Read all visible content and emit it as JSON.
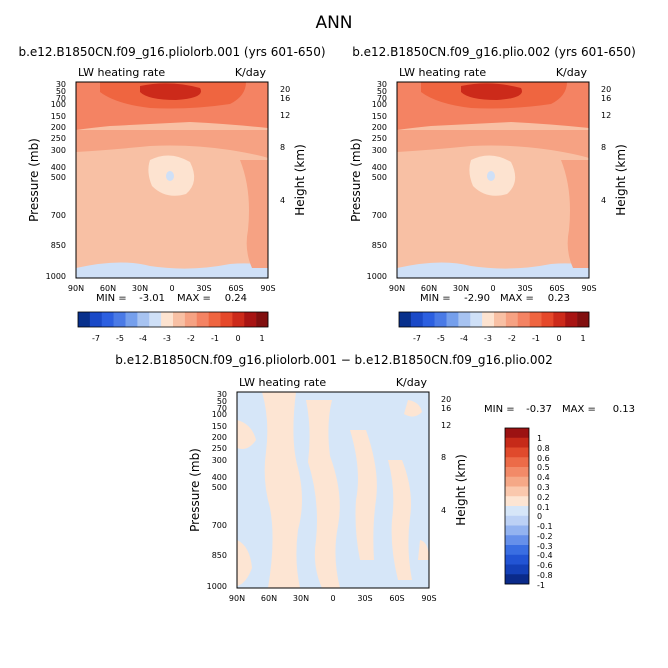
{
  "figure": {
    "title": "ANN",
    "diff_title": "b.e12.B1850CN.f09_g16.pliolorb.001 − b.e12.B1850CN.f09_g16.plio.002"
  },
  "chart_data": [
    {
      "type": "heatmap",
      "title": "b.e12.B1850CN.f09_g16.pliolorb.001 (yrs 601-650)",
      "variable_label": "LW heating rate",
      "units": "K/day",
      "ylabel": "Pressure (mb)",
      "y2label": "Height (km)",
      "x_ticks": [
        "90N",
        "60N",
        "30N",
        "0",
        "30S",
        "60S",
        "90S"
      ],
      "y_ticks": [
        "30",
        "50",
        "70",
        "100",
        "150",
        "200",
        "250",
        "300",
        "400",
        "500",
        "700",
        "850",
        "1000"
      ],
      "y2_ticks": [
        "20",
        "16",
        "12",
        "8",
        "4"
      ],
      "min_label": "MIN = ",
      "min": "-3.01",
      "max_label": "MAX = ",
      "max": "0.24",
      "colorbar": {
        "levels": [
          "-7",
          "-5",
          "-4",
          "-3",
          "-2",
          "-1",
          "0",
          "1"
        ]
      }
    },
    {
      "type": "heatmap",
      "title": "b.e12.B1850CN.f09_g16.plio.002 (yrs 601-650)",
      "variable_label": "LW heating rate",
      "units": "K/day",
      "ylabel": "Pressure (mb)",
      "y2label": "Height (km)",
      "x_ticks": [
        "90N",
        "60N",
        "30N",
        "0",
        "30S",
        "60S",
        "90S"
      ],
      "y_ticks": [
        "30",
        "50",
        "70",
        "100",
        "150",
        "200",
        "250",
        "300",
        "400",
        "500",
        "700",
        "850",
        "1000"
      ],
      "y2_ticks": [
        "20",
        "16",
        "12",
        "8",
        "4"
      ],
      "min_label": "MIN = ",
      "min": "-2.90",
      "max_label": "MAX = ",
      "max": "0.23",
      "colorbar": {
        "levels": [
          "-7",
          "-5",
          "-4",
          "-3",
          "-2",
          "-1",
          "0",
          "1"
        ]
      }
    },
    {
      "type": "heatmap",
      "title": "",
      "variable_label": "LW heating rate",
      "units": "K/day",
      "ylabel": "Pressure (mb)",
      "y2label": "Height (km)",
      "x_ticks": [
        "90N",
        "60N",
        "30N",
        "0",
        "30S",
        "60S",
        "90S"
      ],
      "y_ticks": [
        "30",
        "50",
        "70",
        "100",
        "150",
        "200",
        "250",
        "300",
        "400",
        "500",
        "700",
        "850",
        "1000"
      ],
      "y2_ticks": [
        "20",
        "16",
        "12",
        "8",
        "4"
      ],
      "min_label": "MIN = ",
      "min": "-0.37",
      "max_label": "MAX = ",
      "max": "0.13",
      "colorbar": {
        "levels": [
          "1",
          "0.8",
          "0.6",
          "0.5",
          "0.4",
          "0.3",
          "0.2",
          "0.1",
          "0",
          "-0.1",
          "-0.2",
          "-0.3",
          "-0.4",
          "-0.6",
          "-0.8",
          "-1"
        ]
      }
    }
  ],
  "colors": {
    "main_palette": [
      "#08308c",
      "#1a49c7",
      "#2c5fe0",
      "#4a7ae6",
      "#759fec",
      "#a7c3f1",
      "#cfe0f7",
      "#fde3d0",
      "#f8c0a4",
      "#f6a283",
      "#f48363",
      "#ef6540",
      "#e5482a",
      "#cc2a1a",
      "#a81413",
      "#810f0f"
    ],
    "diff_palette": [
      "#0a2a8a",
      "#1440b8",
      "#2254d4",
      "#3a6ee2",
      "#6690ea",
      "#93b3f0",
      "#bcd1f5",
      "#d6e6f8",
      "#fde5d3",
      "#fac8ad",
      "#f5a887",
      "#f28a68",
      "#ec6b48",
      "#e04a2c",
      "#c62a19",
      "#9c1212"
    ]
  }
}
